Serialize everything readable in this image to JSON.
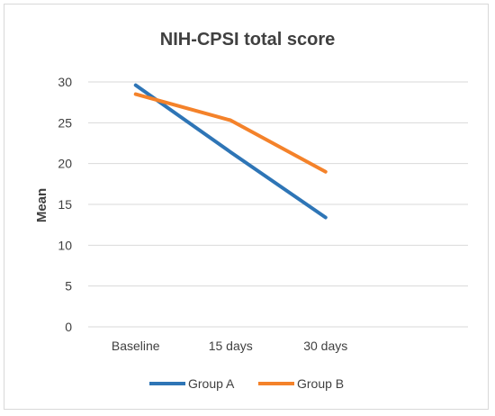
{
  "chart_data": {
    "type": "line",
    "title": "NIH-CPSI total score",
    "xlabel": "",
    "ylabel": "Mean",
    "categories": [
      "Baseline",
      "15 days",
      "30 days"
    ],
    "ylim": [
      0,
      30
    ],
    "yticks": [
      0,
      5,
      10,
      15,
      20,
      25,
      30
    ],
    "grid": true,
    "legend_position": "bottom",
    "series": [
      {
        "name": "Group A",
        "color": "#2e75b6",
        "values": [
          29.6,
          21.4,
          13.4
        ]
      },
      {
        "name": "Group B",
        "color": "#f4822a",
        "values": [
          28.5,
          25.3,
          19.0
        ]
      }
    ]
  }
}
